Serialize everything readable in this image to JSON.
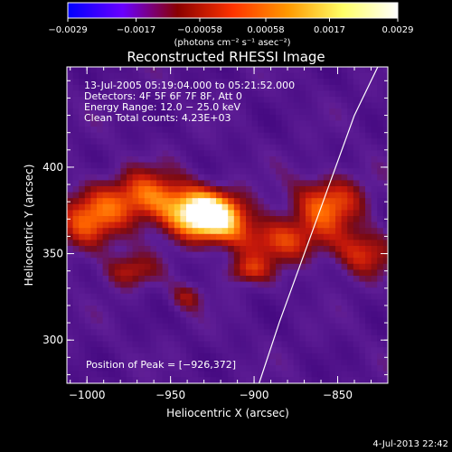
{
  "colorbar": {
    "ticks": [
      "-0.0029",
      "-0.0017",
      "-0.00058",
      "0.00058",
      "0.0017",
      "0.0029"
    ],
    "unit_label": "(photons cm⁻² s⁻¹ asec⁻²)"
  },
  "colors": {
    "background": "#000000",
    "text": "#ffffff",
    "colormap": [
      "#0000ff",
      "#6a00ff",
      "#8a0000",
      "#ff3300",
      "#ff9900",
      "#ffff66",
      "#ffffff"
    ]
  },
  "chart_data": {
    "type": "heatmap",
    "title": "Reconstructed RHESSI Image",
    "xlabel": "Heliocentric X (arcsec)",
    "ylabel": "Heliocentric Y (arcsec)",
    "xlim": [
      -1012,
      -820
    ],
    "ylim": [
      275,
      458
    ],
    "x_ticks": [
      -1000,
      -950,
      -900,
      -850
    ],
    "y_ticks": [
      300,
      350,
      400
    ],
    "x_tick_labels": [
      "−1000",
      "−950",
      "−900",
      "−850"
    ],
    "y_tick_labels": [
      "300",
      "350",
      "400"
    ],
    "colorbar_range": [
      -0.0029,
      0.0029
    ],
    "annotations": [
      "13-Jul-2005 05:19:04.000 to 05:21:52.000",
      "Detectors: 4F 5F 6F 7F 8F, Att 0",
      "Energy Range: 12.0 − 25.0 keV",
      "Clean    Total counts: 4.23E+03"
    ],
    "peak_label": "Position of Peak = [−926,372]",
    "peak": [
      -926,
      372
    ],
    "limb": [
      [
        -897,
        275
      ],
      [
        -885,
        310
      ],
      [
        -870,
        350
      ],
      [
        -855,
        390
      ],
      [
        -840,
        430
      ],
      [
        -826,
        458
      ]
    ],
    "sources": [
      {
        "x": -928,
        "y": 372,
        "sx": 22,
        "sy": 14,
        "amp": 1.0
      },
      {
        "x": -965,
        "y": 382,
        "sx": 28,
        "sy": 16,
        "amp": 0.55
      },
      {
        "x": -1000,
        "y": 368,
        "sx": 20,
        "sy": 18,
        "amp": 0.45
      },
      {
        "x": -885,
        "y": 358,
        "sx": 30,
        "sy": 14,
        "amp": 0.45
      },
      {
        "x": -855,
        "y": 380,
        "sx": 22,
        "sy": 16,
        "amp": 0.5
      },
      {
        "x": -835,
        "y": 350,
        "sx": 18,
        "sy": 14,
        "amp": 0.4
      },
      {
        "x": -975,
        "y": 340,
        "sx": 16,
        "sy": 10,
        "amp": 0.35
      },
      {
        "x": -940,
        "y": 325,
        "sx": 10,
        "sy": 8,
        "amp": 0.3
      },
      {
        "x": -905,
        "y": 340,
        "sx": 14,
        "sy": 8,
        "amp": 0.35
      }
    ]
  },
  "footer": {
    "timestamp": "4-Jul-2013 22:42"
  }
}
